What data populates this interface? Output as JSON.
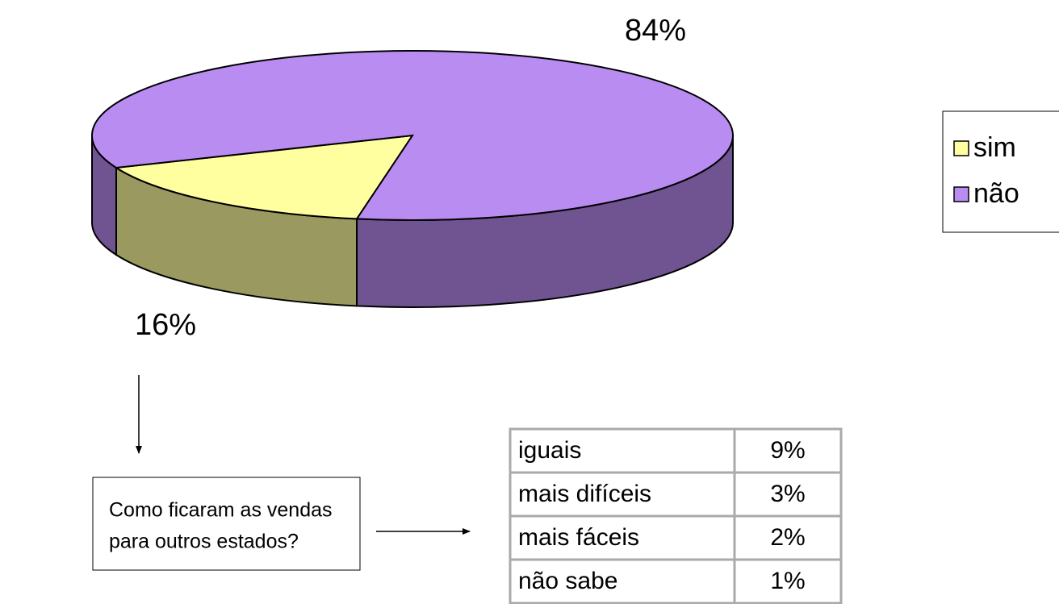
{
  "chart_data": {
    "type": "pie",
    "categories": [
      "sim",
      "não"
    ],
    "values": [
      16,
      84
    ],
    "value_labels": [
      "16%",
      "84%"
    ],
    "colors": [
      "#ffffa0",
      "#b98cf2"
    ],
    "legend": "right"
  },
  "question": [
    "Como ficaram as vendas",
    "para outros estados?"
  ],
  "table": {
    "rows": [
      [
        "iguais",
        "9%"
      ],
      [
        "mais difíceis",
        "3%"
      ],
      [
        "mais fáceis",
        "2%"
      ],
      [
        "não sabe",
        "1%"
      ]
    ]
  }
}
